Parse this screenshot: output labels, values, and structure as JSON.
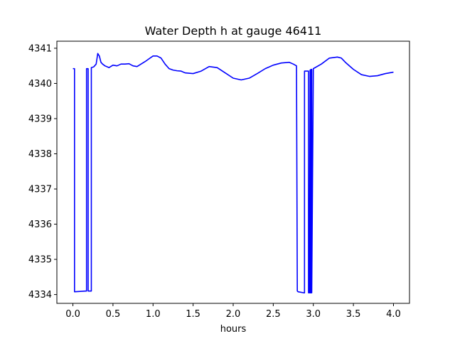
{
  "chart_data": {
    "type": "line",
    "title": "Water Depth h at gauge 46411",
    "xlabel": "hours",
    "ylabel": "",
    "xlim": [
      -0.2,
      4.2
    ],
    "ylim": [
      4333.75,
      4341.2
    ],
    "xticks": [
      0.0,
      0.5,
      1.0,
      1.5,
      2.0,
      2.5,
      3.0,
      3.5,
      4.0
    ],
    "xtick_labels": [
      "0.0",
      "0.5",
      "1.0",
      "1.5",
      "2.0",
      "2.5",
      "3.0",
      "3.5",
      "4.0"
    ],
    "yticks": [
      4334,
      4335,
      4336,
      4337,
      4338,
      4339,
      4340,
      4341
    ],
    "ytick_labels": [
      "4334",
      "4335",
      "4336",
      "4337",
      "4338",
      "4339",
      "4340",
      "4341"
    ],
    "grid": false,
    "series": [
      {
        "color": "#0000ff",
        "x": [
          0.0,
          0.02,
          0.02,
          0.16,
          0.17,
          0.17,
          0.18,
          0.19,
          0.19,
          0.22,
          0.23,
          0.23,
          0.26,
          0.29,
          0.31,
          0.33,
          0.35,
          0.37,
          0.4,
          0.45,
          0.5,
          0.55,
          0.6,
          0.65,
          0.7,
          0.75,
          0.8,
          0.85,
          0.9,
          0.95,
          1.0,
          1.05,
          1.1,
          1.15,
          1.2,
          1.25,
          1.3,
          1.35,
          1.4,
          1.5,
          1.6,
          1.7,
          1.8,
          1.9,
          2.0,
          2.1,
          2.2,
          2.3,
          2.4,
          2.5,
          2.6,
          2.7,
          2.75,
          2.79,
          2.8,
          2.81,
          2.88,
          2.89,
          2.89,
          2.91,
          2.93,
          2.94,
          2.94,
          2.95,
          2.96,
          2.96,
          2.97,
          2.97,
          2.98,
          2.98,
          3.0,
          3.1,
          3.2,
          3.3,
          3.35,
          3.4,
          3.5,
          3.6,
          3.7,
          3.8,
          3.9,
          4.0
        ],
        "y": [
          4340.42,
          4340.42,
          4334.08,
          4334.1,
          4334.1,
          4340.42,
          4340.42,
          4340.42,
          4334.1,
          4334.1,
          4334.1,
          4340.45,
          4340.47,
          4340.55,
          4340.85,
          4340.78,
          4340.6,
          4340.55,
          4340.5,
          4340.45,
          4340.52,
          4340.5,
          4340.55,
          4340.55,
          4340.56,
          4340.5,
          4340.48,
          4340.55,
          4340.62,
          4340.7,
          4340.78,
          4340.78,
          4340.72,
          4340.55,
          4340.42,
          4340.38,
          4340.36,
          4340.35,
          4340.3,
          4340.28,
          4340.35,
          4340.48,
          4340.45,
          4340.3,
          4340.15,
          4340.1,
          4340.15,
          4340.28,
          4340.42,
          4340.52,
          4340.58,
          4340.6,
          4340.55,
          4340.5,
          4334.1,
          4334.08,
          4334.05,
          4334.05,
          4340.35,
          4340.35,
          4340.35,
          4340.35,
          4334.05,
          4334.05,
          4340.38,
          4334.05,
          4334.05,
          4340.4,
          4340.4,
          4334.05,
          4340.42,
          4340.55,
          4340.72,
          4340.75,
          4340.72,
          4340.6,
          4340.4,
          4340.25,
          4340.2,
          4340.22,
          4340.28,
          4340.32
        ]
      }
    ]
  }
}
